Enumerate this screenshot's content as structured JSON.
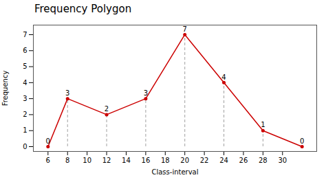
{
  "chart_data": {
    "type": "line",
    "title": "Frequency Polygon",
    "xlabel": "Class-interval",
    "ylabel": "Frequency",
    "x": [
      6,
      8,
      12,
      16,
      20,
      24,
      28,
      32
    ],
    "values": [
      0,
      3,
      2,
      3,
      7,
      4,
      1,
      0
    ],
    "color": "#cc0000",
    "marker": "circle",
    "data_labels": true,
    "dashed_x": [
      8,
      12,
      16,
      20,
      24,
      28
    ],
    "xlim": [
      4.5,
      33.5
    ],
    "ylim": [
      -0.3,
      7.6
    ],
    "xticks": [
      6,
      8,
      10,
      12,
      14,
      16,
      18,
      20,
      22,
      24,
      26,
      28,
      30
    ],
    "yticks": [
      0,
      1,
      2,
      3,
      4,
      5,
      6,
      7
    ],
    "grid": false
  }
}
